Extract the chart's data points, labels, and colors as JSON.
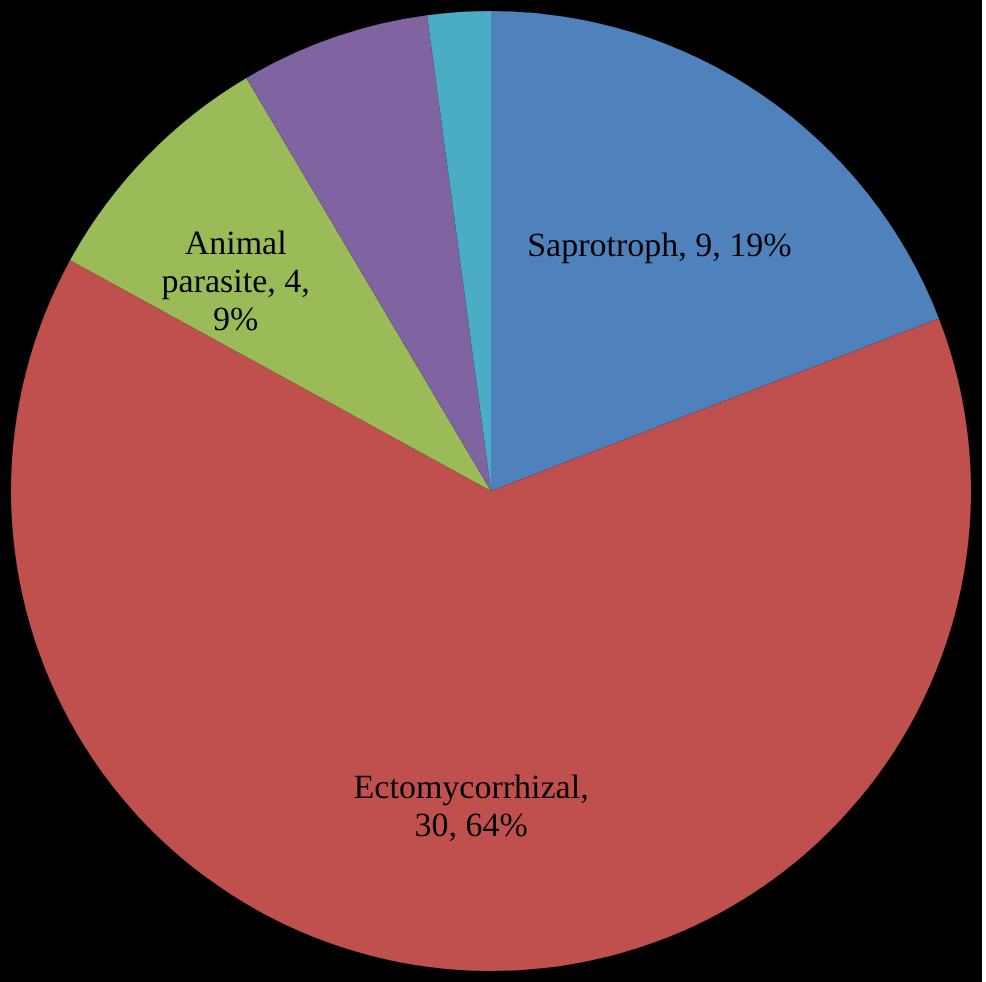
{
  "chart_data": {
    "type": "pie",
    "categories": [
      "Saprotroph",
      "Ectomycorrhizal",
      "Animal parasite",
      null,
      null
    ],
    "values": [
      9,
      30,
      4,
      3,
      1
    ],
    "colors": [
      "#4f81bd",
      "#c0504d",
      "#9bbb59",
      "#8064a2",
      "#4bacc6"
    ],
    "value_labels": [
      ", 9, 19%",
      ", 30, 64%",
      ", 4, 9%",
      null,
      null
    ],
    "legend": false
  }
}
